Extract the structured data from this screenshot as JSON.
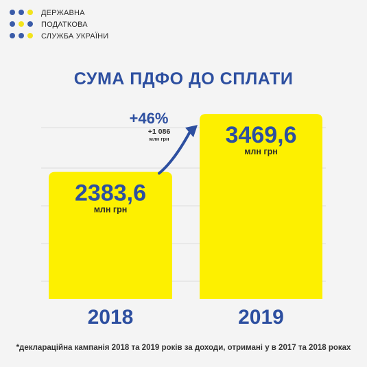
{
  "logo": {
    "lines": [
      "ДЕРЖАВНА",
      "ПОДАТКОВА",
      "СЛУЖБА УКРАЇНИ"
    ],
    "dots": [
      [
        "#3a5ba8",
        "#3a5ba8",
        "#f2e31c"
      ],
      [
        "#3a5ba8",
        "#f2e31c",
        "#3a5ba8"
      ],
      [
        "#3a5ba8",
        "#3a5ba8",
        "#f2e31c"
      ]
    ]
  },
  "colors": {
    "bar": "#fdf000",
    "primary": "#2d4fa0",
    "grid": "#dcdcdc"
  },
  "chart_data": {
    "type": "bar",
    "title": "СУМА ПДФО ДО СПЛАТИ",
    "categories": [
      "2018",
      "2019"
    ],
    "values": [
      2383.6,
      3469.6
    ],
    "value_labels": [
      "2383,6",
      "3469,6"
    ],
    "unit": "млн грн",
    "ylim": [
      0,
      3600
    ],
    "grid": true,
    "annotation": {
      "percent": "+46%",
      "delta": "+1 086",
      "delta_unit": "млн грн"
    }
  },
  "footnote": "*деклараційна кампанія 2018 та 2019 років за доходи, отримані у в 2017 та 2018 роках"
}
